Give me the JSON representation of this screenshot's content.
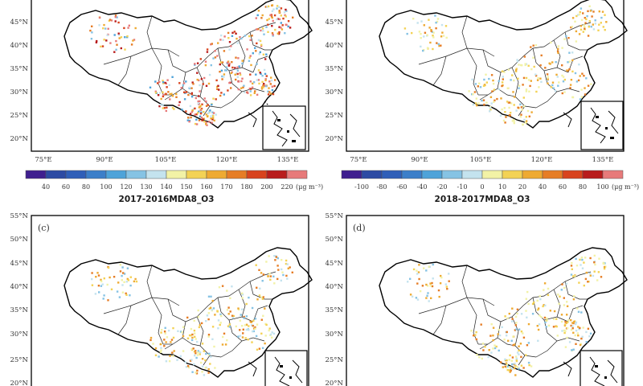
{
  "figure": {
    "colors": {
      "background": "#ffffff",
      "border": "#000000",
      "province_line": "#222222",
      "neutral_marker": "#eeeeee"
    },
    "panels": [
      {
        "id": "a",
        "label": "",
        "lat_ticks": [
          "20°N",
          "25°N",
          "30°N",
          "35°N",
          "40°N",
          "45°N"
        ],
        "lon_ticks": [
          "75°E",
          "90°E",
          "105°E",
          "120°E",
          "135°E"
        ]
      },
      {
        "id": "b",
        "label": "",
        "lat_ticks": [
          "20°N",
          "25°N",
          "30°N",
          "35°N",
          "40°N",
          "45°N"
        ],
        "lon_ticks": [
          "75°E",
          "90°E",
          "105°E",
          "120°E",
          "135°E"
        ]
      },
      {
        "id": "c",
        "label": "(c)",
        "lat_ticks": [
          "20°N",
          "25°N",
          "30°N",
          "35°N",
          "40°N",
          "45°N",
          "50°N",
          "55°N"
        ],
        "lon_ticks": []
      },
      {
        "id": "d",
        "label": "(d)",
        "lat_ticks": [
          "20°N",
          "25°N",
          "30°N",
          "35°N",
          "40°N",
          "45°N",
          "50°N",
          "55°N"
        ],
        "lon_ticks": []
      }
    ],
    "colorbars": [
      {
        "labels": [
          "40",
          "60",
          "80",
          "100",
          "120",
          "130",
          "140",
          "150",
          "160",
          "170",
          "180",
          "200",
          "220"
        ],
        "unit": "(μg m⁻³)",
        "caption": "2017-2016MDA8_O3",
        "colors": [
          "#3f1f8f",
          "#2d4ba3",
          "#2f5fb8",
          "#3c7fc9",
          "#4ea3d9",
          "#86c3e4",
          "#c4e3ee",
          "#f2f2a6",
          "#f3d255",
          "#eeaa32",
          "#e67d26",
          "#d8431e",
          "#b81c1c",
          "#e77a7a"
        ]
      },
      {
        "labels": [
          "-100",
          "-80",
          "-60",
          "-40",
          "-20",
          "-10",
          "0",
          "10",
          "20",
          "40",
          "60",
          "80",
          "100"
        ],
        "unit": "(μg m⁻³)",
        "caption": "2018-2017MDA8_O3",
        "colors": [
          "#3f1f8f",
          "#2d4ba3",
          "#2f5fb8",
          "#3c7fc9",
          "#4ea3d9",
          "#86c3e4",
          "#c4e3ee",
          "#f2f2a6",
          "#f3d255",
          "#eeaa32",
          "#e67d26",
          "#d8431e",
          "#b81c1c",
          "#e77a7a"
        ]
      }
    ]
  }
}
